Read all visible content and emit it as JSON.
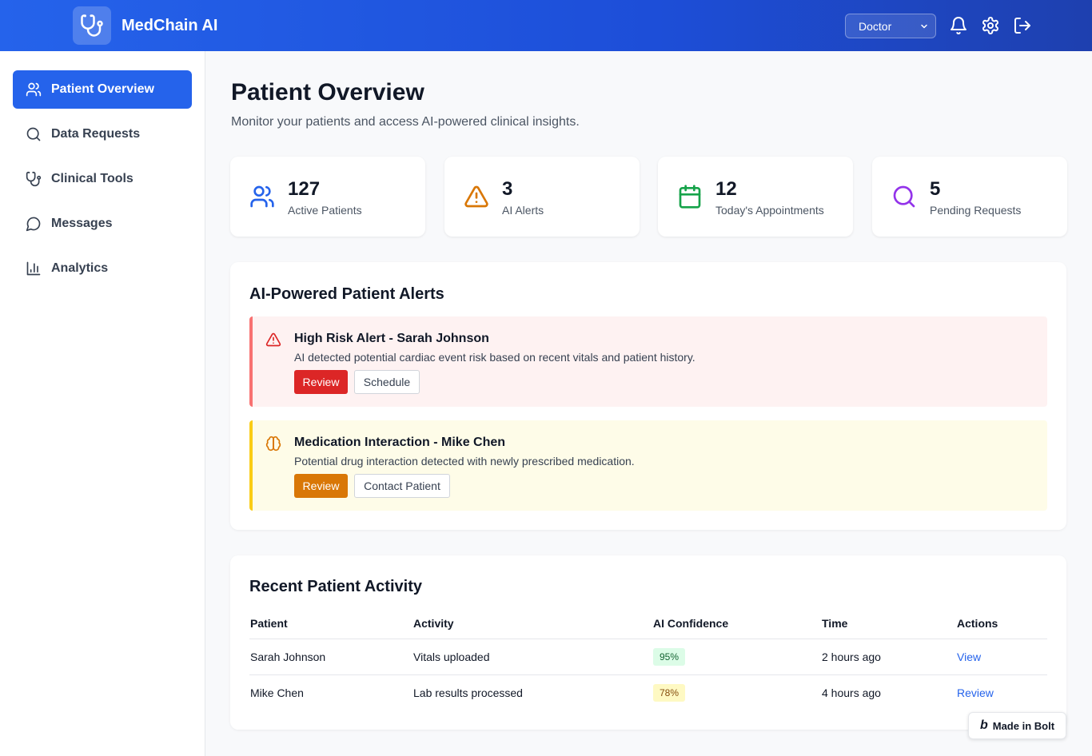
{
  "header": {
    "app_title": "MedChain AI",
    "role_select": {
      "selected": "Doctor"
    },
    "icons": [
      "stethoscope-icon",
      "bell-icon",
      "gear-icon",
      "logout-icon"
    ]
  },
  "sidebar": {
    "items": [
      {
        "label": "Patient Overview",
        "icon": "users-icon",
        "active": true
      },
      {
        "label": "Data Requests",
        "icon": "search-icon",
        "active": false
      },
      {
        "label": "Clinical Tools",
        "icon": "stethoscope-icon",
        "active": false
      },
      {
        "label": "Messages",
        "icon": "message-icon",
        "active": false
      },
      {
        "label": "Analytics",
        "icon": "bar-chart-icon",
        "active": false
      }
    ]
  },
  "main": {
    "title": "Patient Overview",
    "subtitle": "Monitor your patients and access AI-powered clinical insights.",
    "stats": [
      {
        "value": "127",
        "label": "Active Patients",
        "icon": "users-icon",
        "color": "#2563eb"
      },
      {
        "value": "3",
        "label": "AI Alerts",
        "icon": "warning-icon",
        "color": "#d97706"
      },
      {
        "value": "12",
        "label": "Today's Appointments",
        "icon": "calendar-icon",
        "color": "#16a34a"
      },
      {
        "value": "5",
        "label": "Pending Requests",
        "icon": "search-icon",
        "color": "#9333ea"
      }
    ],
    "alerts_panel": {
      "title": "AI-Powered Patient Alerts",
      "alerts": [
        {
          "title": "High Risk Alert - Sarah Johnson",
          "description": "AI detected potential cardiac event risk based on recent vitals and patient history.",
          "primary_action": "Review",
          "secondary_action": "Schedule",
          "severity": "high",
          "icon": "warning-icon"
        },
        {
          "title": "Medication Interaction - Mike Chen",
          "description": "Potential drug interaction detected with newly prescribed medication.",
          "primary_action": "Review",
          "secondary_action": "Contact Patient",
          "severity": "medium",
          "icon": "brain-icon"
        }
      ]
    },
    "activity_panel": {
      "title": "Recent Patient Activity",
      "columns": [
        "Patient",
        "Activity",
        "AI Confidence",
        "Time",
        "Actions"
      ],
      "rows": [
        {
          "patient": "Sarah Johnson",
          "activity": "Vitals uploaded",
          "confidence": "95%",
          "time": "2 hours ago",
          "action": "View"
        },
        {
          "patient": "Mike Chen",
          "activity": "Lab results processed",
          "confidence": "78%",
          "time": "4 hours ago",
          "action": "Review"
        }
      ]
    }
  },
  "badge": {
    "label": "Made in Bolt"
  },
  "colors": {
    "primary": "#2563eb",
    "alert_red": "#dc2626",
    "alert_orange": "#d97706"
  }
}
